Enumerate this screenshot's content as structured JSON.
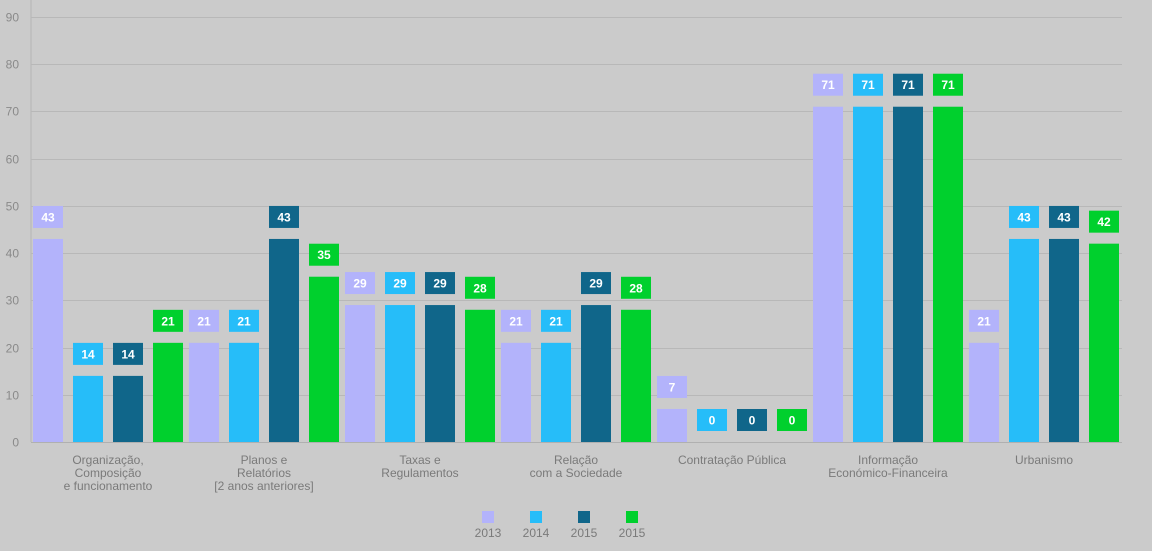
{
  "chart_data": {
    "type": "bar",
    "title": "",
    "xlabel": "",
    "ylabel": "",
    "ylim": [
      0,
      90
    ],
    "yticks": [
      0,
      10,
      20,
      30,
      40,
      50,
      60,
      70,
      80,
      90
    ],
    "grid": true,
    "legend_position": "bottom-center",
    "categories": [
      [
        "Organização,",
        "Composição",
        "e funcionamento"
      ],
      [
        "Planos e",
        "Relatórios",
        "[2 anos anteriores]"
      ],
      [
        "Taxas e",
        "Regulamentos"
      ],
      [
        "Relação",
        "com a Sociedade"
      ],
      [
        "Contratação Pública"
      ],
      [
        "Informação",
        "Económico-Financeira"
      ],
      [
        "Urbanismo"
      ]
    ],
    "series": [
      {
        "name": "2013",
        "color": "#b3b3fb",
        "values": [
          43,
          21,
          29,
          21,
          7,
          71,
          21
        ]
      },
      {
        "name": "2014",
        "color": "#26bdf9",
        "values": [
          14,
          21,
          29,
          21,
          0,
          71,
          43
        ]
      },
      {
        "name": "2015",
        "color": "#10668a",
        "values": [
          14,
          43,
          29,
          29,
          0,
          71,
          43
        ]
      },
      {
        "name": "2015",
        "color": "#00d02d",
        "values": [
          21,
          35,
          28,
          28,
          0,
          71,
          42
        ]
      }
    ]
  }
}
